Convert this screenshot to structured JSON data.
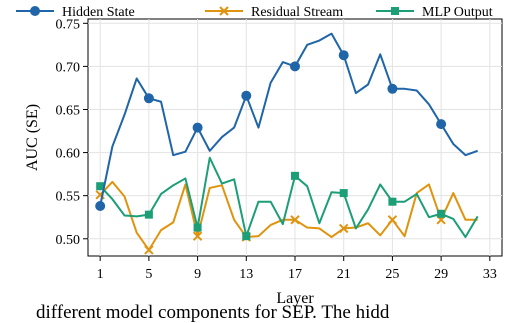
{
  "caption": "different model components for SEP. The hidd",
  "chart_data": {
    "type": "line",
    "xlabel": "Layer",
    "ylabel": "AUC (SE)",
    "xlim": [
      0,
      34
    ],
    "ylim": [
      0.48,
      0.755
    ],
    "xticks": [
      1,
      5,
      9,
      13,
      17,
      21,
      25,
      29,
      33
    ],
    "xtick_labels": [
      "1",
      "5",
      "9",
      "13",
      "17",
      "21",
      "25",
      "29",
      "33"
    ],
    "yticks": [
      0.5,
      0.55,
      0.6,
      0.65,
      0.7,
      0.75
    ],
    "ytick_labels": [
      "0.50",
      "0.55",
      "0.60",
      "0.65",
      "0.70",
      "0.75"
    ],
    "grid": true,
    "legend_position": "top-outside",
    "marker_every": 4,
    "x": [
      1,
      2,
      3,
      4,
      5,
      6,
      7,
      8,
      9,
      10,
      11,
      12,
      13,
      14,
      15,
      16,
      17,
      18,
      19,
      20,
      21,
      22,
      23,
      24,
      25,
      26,
      27,
      28,
      29,
      30,
      31,
      32
    ],
    "series": [
      {
        "name": "Hidden State",
        "color": "#1f65a8",
        "marker": "circle",
        "values": [
          0.538,
          0.607,
          0.644,
          0.686,
          0.663,
          0.659,
          0.597,
          0.601,
          0.629,
          0.602,
          0.618,
          0.629,
          0.666,
          0.629,
          0.681,
          0.705,
          0.7,
          0.725,
          0.73,
          0.738,
          0.713,
          0.669,
          0.679,
          0.714,
          0.674,
          0.674,
          0.672,
          0.656,
          0.633,
          0.61,
          0.597,
          0.602
        ]
      },
      {
        "name": "Residual Stream",
        "color": "#e0930d",
        "marker": "x",
        "values": [
          0.551,
          0.566,
          0.549,
          0.507,
          0.487,
          0.51,
          0.519,
          0.563,
          0.503,
          0.559,
          0.562,
          0.522,
          0.502,
          0.503,
          0.516,
          0.522,
          0.522,
          0.513,
          0.512,
          0.502,
          0.512,
          0.513,
          0.518,
          0.504,
          0.522,
          0.503,
          0.553,
          0.563,
          0.522,
          0.553,
          0.522,
          0.522
        ]
      },
      {
        "name": "MLP Output",
        "color": "#1c9e77",
        "marker": "square",
        "values": [
          0.561,
          0.546,
          0.527,
          0.526,
          0.528,
          0.552,
          0.562,
          0.57,
          0.513,
          0.594,
          0.564,
          0.569,
          0.503,
          0.543,
          0.543,
          0.517,
          0.573,
          0.561,
          0.518,
          0.554,
          0.553,
          0.512,
          0.534,
          0.563,
          0.543,
          0.543,
          0.552,
          0.525,
          0.529,
          0.523,
          0.502,
          0.526
        ]
      }
    ]
  }
}
